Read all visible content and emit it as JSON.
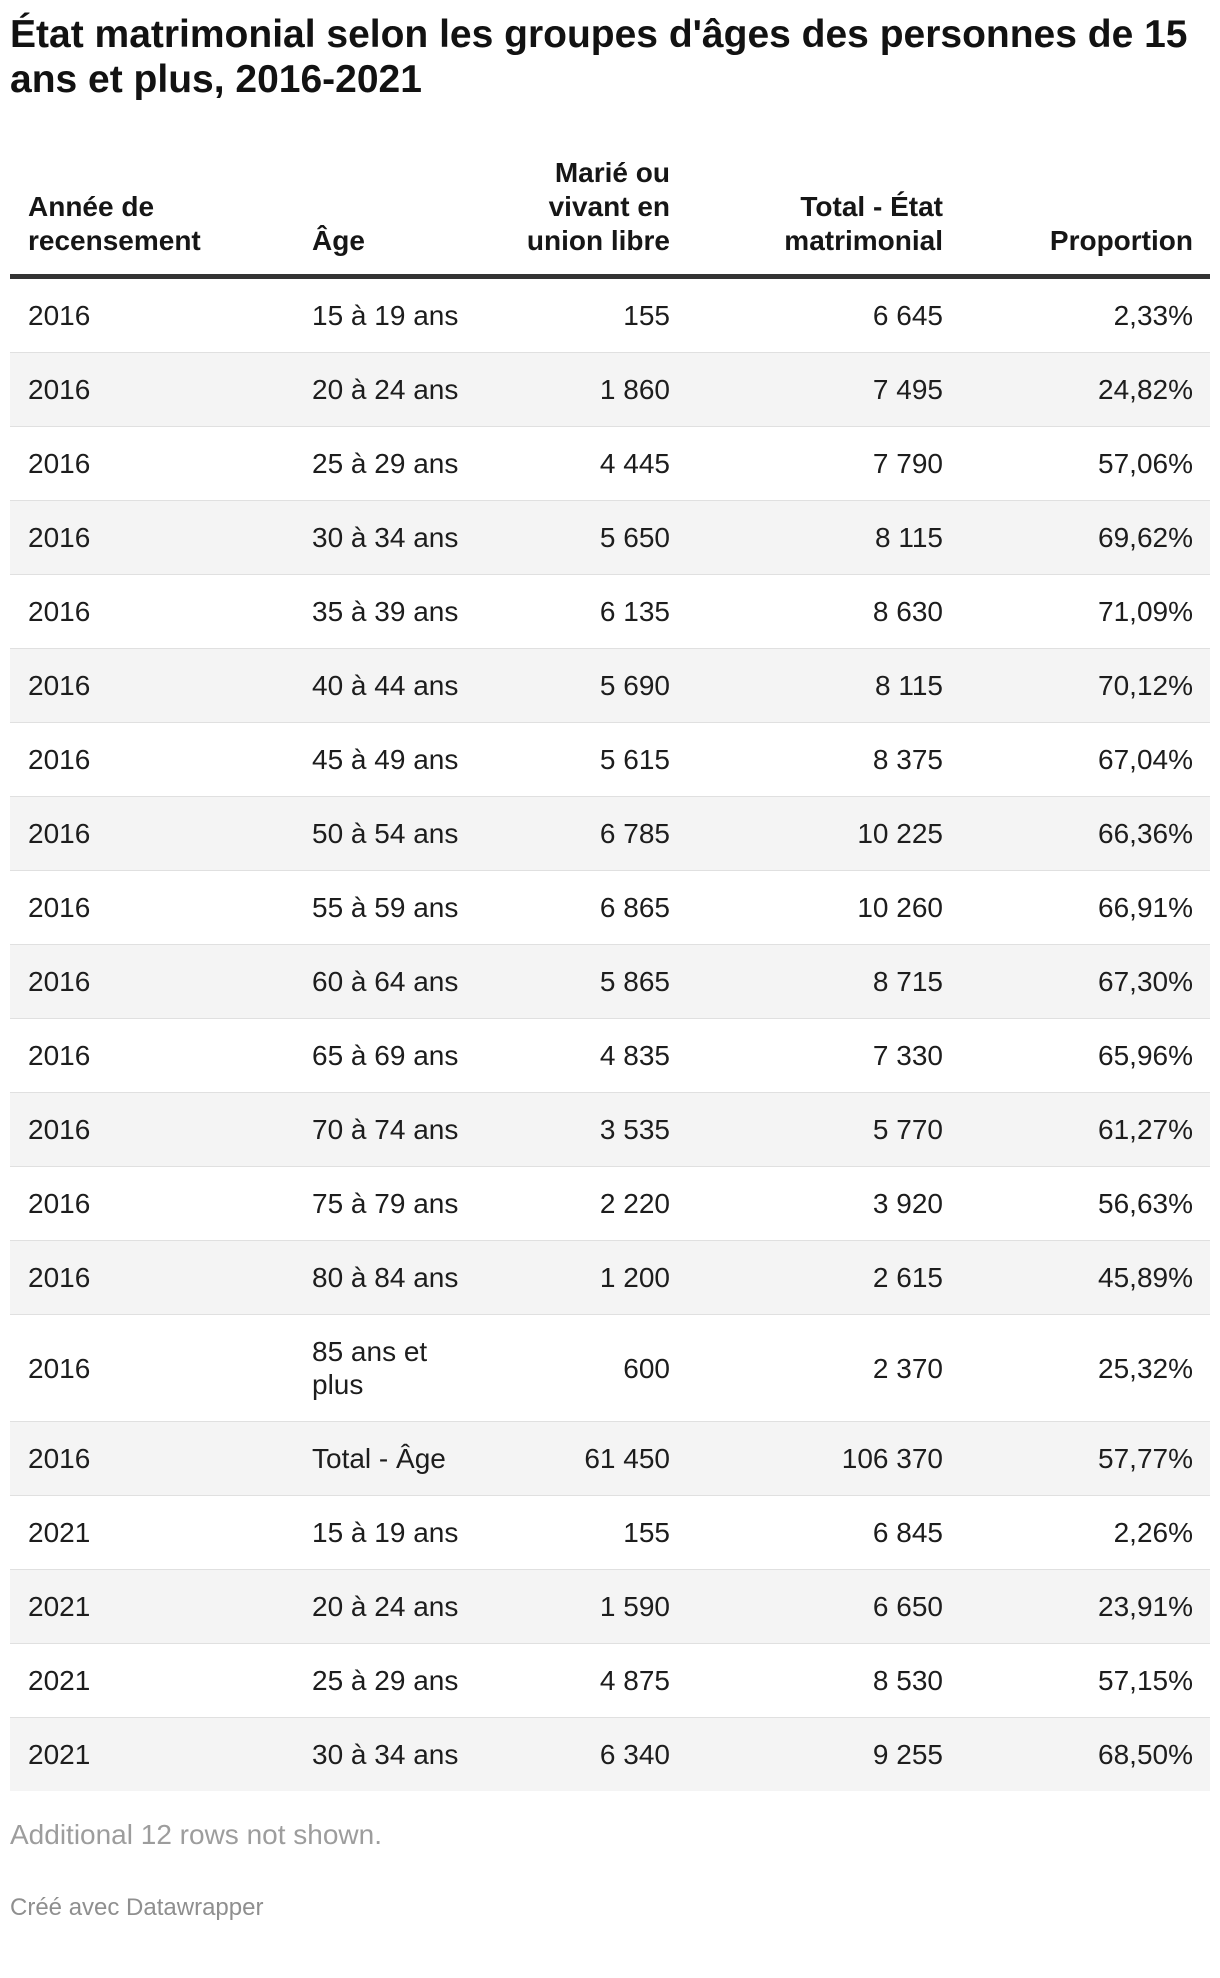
{
  "title": "État matrimonial selon les groupes d'âges des personnes de 15 ans et plus, 2016-2021",
  "chart_data": {
    "type": "table",
    "title": "État matrimonial selon les groupes d'âges des personnes de 15 ans et plus, 2016-2021",
    "columns": [
      "Année de recensement",
      "Âge",
      "Marié ou vivant en union libre",
      "Total - État matrimonial",
      "Proportion"
    ],
    "column_alignments": [
      "left",
      "left",
      "right",
      "right",
      "right"
    ],
    "rows": [
      [
        "2016",
        "15 à 19 ans",
        "155",
        "6 645",
        "2,33%"
      ],
      [
        "2016",
        "20 à 24 ans",
        "1 860",
        "7 495",
        "24,82%"
      ],
      [
        "2016",
        "25 à 29 ans",
        "4 445",
        "7 790",
        "57,06%"
      ],
      [
        "2016",
        "30 à 34 ans",
        "5 650",
        "8 115",
        "69,62%"
      ],
      [
        "2016",
        "35 à 39 ans",
        "6 135",
        "8 630",
        "71,09%"
      ],
      [
        "2016",
        "40 à 44 ans",
        "5 690",
        "8 115",
        "70,12%"
      ],
      [
        "2016",
        "45 à 49 ans",
        "5 615",
        "8 375",
        "67,04%"
      ],
      [
        "2016",
        "50 à 54 ans",
        "6 785",
        "10 225",
        "66,36%"
      ],
      [
        "2016",
        "55 à 59 ans",
        "6 865",
        "10 260",
        "66,91%"
      ],
      [
        "2016",
        "60 à 64 ans",
        "5 865",
        "8 715",
        "67,30%"
      ],
      [
        "2016",
        "65 à 69 ans",
        "4 835",
        "7 330",
        "65,96%"
      ],
      [
        "2016",
        "70 à 74 ans",
        "3 535",
        "5 770",
        "61,27%"
      ],
      [
        "2016",
        "75 à 79 ans",
        "2 220",
        "3 920",
        "56,63%"
      ],
      [
        "2016",
        "80 à 84 ans",
        "1 200",
        "2 615",
        "45,89%"
      ],
      [
        "2016",
        "85 ans et plus",
        "600",
        "2 370",
        "25,32%"
      ],
      [
        "2016",
        "Total - Âge",
        "61 450",
        "106 370",
        "57,77%"
      ],
      [
        "2021",
        "15 à 19 ans",
        "155",
        "6 845",
        "2,26%"
      ],
      [
        "2021",
        "20 à 24 ans",
        "1 590",
        "6 650",
        "23,91%"
      ],
      [
        "2021",
        "25 à 29 ans",
        "4 875",
        "8 530",
        "57,15%"
      ],
      [
        "2021",
        "30 à 34 ans",
        "6 340",
        "9 255",
        "68,50%"
      ]
    ],
    "layout_hints": {
      "zebra_stripe_color": "#f4f4f4",
      "header_rule_color": "#333333",
      "row_rule_color": "#e0e0e0"
    }
  },
  "footer": {
    "additional_note": "Additional 12 rows not shown.",
    "attribution": "Créé avec Datawrapper"
  },
  "colors": {
    "text": "#1d1d1d",
    "title": "#121212",
    "muted_note": "#9d9d9d",
    "muted_attribution": "#8f8f8f"
  }
}
